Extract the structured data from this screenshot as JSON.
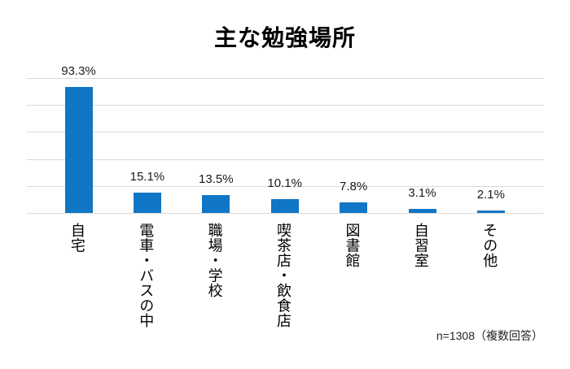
{
  "chart_data": {
    "type": "bar",
    "title": "主な勉強場所",
    "categories": [
      "自宅",
      "電車・バスの中",
      "職場・学校",
      "喫茶店・飲食店",
      "図書館",
      "自習室",
      "その他"
    ],
    "values": [
      93.3,
      15.1,
      13.5,
      10.1,
      7.8,
      3.1,
      2.1
    ],
    "value_labels": [
      "93.3%",
      "15.1%",
      "13.5%",
      "10.1%",
      "7.8%",
      "3.1%",
      "2.1%"
    ],
    "unit": "%",
    "note": "n=1308（複数回答）",
    "xlabel": "",
    "ylabel": "",
    "ylim": [
      0,
      100
    ],
    "gridline_values": [
      0,
      20,
      40,
      60,
      80,
      100
    ],
    "grid": true,
    "legend": "none",
    "y_tick_labels_shown": false,
    "bar_color": "#1176c5",
    "gridline_color": "#d9d9d9",
    "title_color": "#000000",
    "label_color": "#1a1a1a",
    "background_color": "#ffffff"
  }
}
